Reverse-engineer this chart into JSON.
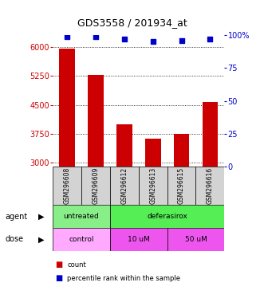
{
  "title": "GDS3558 / 201934_at",
  "samples": [
    "GSM296608",
    "GSM296609",
    "GSM296612",
    "GSM296613",
    "GSM296615",
    "GSM296616"
  ],
  "bar_values": [
    5950,
    5270,
    4000,
    3630,
    3750,
    4580
  ],
  "percentile_values": [
    99,
    99,
    97,
    95,
    96,
    97
  ],
  "ylim_left": [
    2900,
    6300
  ],
  "ylim_right": [
    0,
    100
  ],
  "yticks_left": [
    3000,
    3750,
    4500,
    5250,
    6000
  ],
  "yticks_right": [
    0,
    25,
    50,
    75,
    100
  ],
  "bar_color": "#cc0000",
  "dot_color": "#0000cc",
  "bar_width": 0.55,
  "agent_untreated_color": "#88ee88",
  "agent_deferasirox_color": "#55ee55",
  "dose_control_color": "#ffaaff",
  "dose_10um_color": "#ee55ee",
  "dose_50um_color": "#ee55ee",
  "legend_count_color": "#cc0000",
  "legend_pct_color": "#0000cc",
  "left_axis_color": "#cc0000",
  "right_axis_color": "#0000cc",
  "sample_box_color": "#d3d3d3"
}
